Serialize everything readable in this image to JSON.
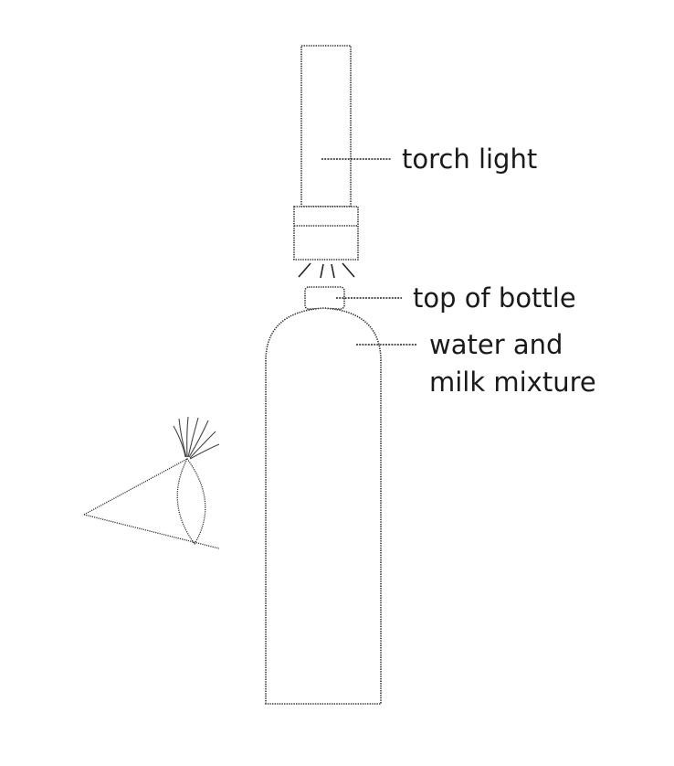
{
  "labels": {
    "torch": "torch light",
    "cap": "top of bottle",
    "mixture_line1": "water and",
    "mixture_line2": "milk mixture"
  }
}
